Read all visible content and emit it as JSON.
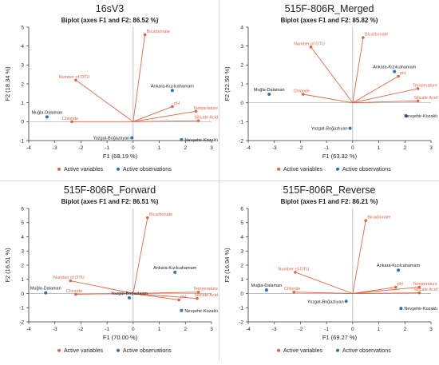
{
  "colors": {
    "variable": "#e06642",
    "observation": "#2e75b6",
    "axis": "#333333",
    "zero": "#aaaaaa"
  },
  "chart_data": [
    {
      "type": "scatter",
      "dataset": "16sV3",
      "title": "Biplot (axes F1 and F2: 86.52 %)",
      "xlabel": "F1 (68.19 %)",
      "ylabel": "F2 (18.34 %)",
      "xlim": [
        -4,
        3
      ],
      "ylim": [
        -1,
        5
      ],
      "xticks": [
        -4,
        -3,
        -2,
        -1,
        0,
        1,
        2,
        3
      ],
      "yticks": [
        -1,
        0,
        1,
        2,
        3,
        4,
        5
      ],
      "legend": [
        "Active variables",
        "Active observations"
      ],
      "variables": [
        {
          "label": "Bicarbonate",
          "x": 0.45,
          "y": 4.6
        },
        {
          "label": "Number of OTU",
          "x": -2.2,
          "y": 2.2
        },
        {
          "label": "pH",
          "x": 1.5,
          "y": 0.8
        },
        {
          "label": "Temperature",
          "x": 2.4,
          "y": 0.55
        },
        {
          "label": "Silicate Acid",
          "x": 2.5,
          "y": 0.05
        },
        {
          "label": "Chloride",
          "x": -2.35,
          "y": 0.0
        }
      ],
      "observations": [
        {
          "label": "Ankara-Kızılcahamam",
          "x": 1.5,
          "y": 1.65
        },
        {
          "label": "Muğla-Dalaman",
          "x": -3.3,
          "y": 0.25
        },
        {
          "label": "Yozgat-Boğazlıyan",
          "x": -0.05,
          "y": -0.85
        },
        {
          "label": "Nevşehir-Kozaklı",
          "x": 1.85,
          "y": -0.95
        }
      ]
    },
    {
      "type": "scatter",
      "dataset": "515F-806R_Merged",
      "title": "Biplot (axes F1 and F2: 85.82 %)",
      "xlabel": "F1 (63.32 %)",
      "ylabel": "F2 (22.50 %)",
      "xlim": [
        -4,
        3
      ],
      "ylim": [
        -2,
        4
      ],
      "xticks": [
        -4,
        -3,
        -2,
        -1,
        0,
        1,
        2,
        3
      ],
      "yticks": [
        -2,
        -1,
        0,
        1,
        2,
        3,
        4
      ],
      "legend": [
        "Active variables",
        "Active observations"
      ],
      "variables": [
        {
          "label": "Bicarbonate",
          "x": 0.4,
          "y": 3.45
        },
        {
          "label": "Number of OTU",
          "x": -1.6,
          "y": 2.95
        },
        {
          "label": "pH",
          "x": 1.75,
          "y": 1.4
        },
        {
          "label": "Temperature",
          "x": 2.5,
          "y": 0.75
        },
        {
          "label": "Silicate Acid",
          "x": 2.5,
          "y": 0.1
        },
        {
          "label": "Chloride",
          "x": -1.9,
          "y": 0.45
        }
      ],
      "observations": [
        {
          "label": "Ankara-Kızılcahamam",
          "x": 1.6,
          "y": 1.65
        },
        {
          "label": "Muğla-Dalaman",
          "x": -3.2,
          "y": 0.45
        },
        {
          "label": "Yozgat-Boğazlıyan",
          "x": -0.1,
          "y": -1.35
        },
        {
          "label": "Nevşehir-Kozaklı",
          "x": 2.05,
          "y": -0.7
        }
      ]
    },
    {
      "type": "scatter",
      "dataset": "515F-806R_Forward",
      "title": "Biplot (axes F1 and F2: 86.51 %)",
      "xlabel": "F1 (70.00 %)",
      "ylabel": "F2 (16.51 %)",
      "xlim": [
        -4,
        3
      ],
      "ylim": [
        -2,
        6
      ],
      "xticks": [
        -4,
        -3,
        -2,
        -1,
        0,
        1,
        2,
        3
      ],
      "yticks": [
        -2,
        -1,
        0,
        1,
        2,
        3,
        4,
        5,
        6
      ],
      "legend": [
        "Active variables",
        "Active observations"
      ],
      "variables": [
        {
          "label": "Bicarbonate",
          "x": 0.55,
          "y": 5.35
        },
        {
          "label": "Number of OTU",
          "x": -2.4,
          "y": 0.9
        },
        {
          "label": "Temperature",
          "x": 2.5,
          "y": 0.1
        },
        {
          "label": "Silicate Acid",
          "x": 2.45,
          "y": -0.35
        },
        {
          "label": "pH",
          "x": 1.75,
          "y": -0.45
        },
        {
          "label": "Chloride",
          "x": -2.2,
          "y": -0.05
        }
      ],
      "observations": [
        {
          "label": "Ankara-Kızılcahamam",
          "x": 1.6,
          "y": 1.5
        },
        {
          "label": "Muğla-Dalaman",
          "x": -3.35,
          "y": 0.05
        },
        {
          "label": "Yozgat-Boğazlıyan",
          "x": -0.15,
          "y": -0.3
        },
        {
          "label": "Nevşehir-Kozaklı",
          "x": 1.85,
          "y": -1.2
        }
      ]
    },
    {
      "type": "scatter",
      "dataset": "515F-806R_Reverse",
      "title": "Biplot (axes F1 and F2: 86.21 %)",
      "xlabel": "F1 (69.27 %)",
      "ylabel": "F2 (16.94 %)",
      "xlim": [
        -4,
        3
      ],
      "ylim": [
        -2,
        6
      ],
      "xticks": [
        -4,
        -3,
        -2,
        -1,
        0,
        1,
        2,
        3
      ],
      "yticks": [
        -2,
        -1,
        0,
        1,
        2,
        3,
        4,
        5,
        6
      ],
      "legend": [
        "Active variables",
        "Active observations"
      ],
      "variables": [
        {
          "label": "Bicarbonate",
          "x": 0.5,
          "y": 5.15
        },
        {
          "label": "Number of OTU",
          "x": -2.2,
          "y": 1.5
        },
        {
          "label": "pH",
          "x": 1.65,
          "y": 0.45
        },
        {
          "label": "Temperature",
          "x": 2.55,
          "y": 0.45
        },
        {
          "label": "Silicate Acid",
          "x": 2.55,
          "y": 0.05
        },
        {
          "label": "Chloride",
          "x": -2.25,
          "y": 0.1
        }
      ],
      "observations": [
        {
          "label": "Ankara-Kızılcahamam",
          "x": 1.75,
          "y": 1.65
        },
        {
          "label": "Muğla-Dalaman",
          "x": -3.3,
          "y": 0.25
        },
        {
          "label": "Yozgat-Boğazlıyan",
          "x": -0.25,
          "y": -0.55
        },
        {
          "label": "Nevşehir-Kozaklı",
          "x": 1.85,
          "y": -1.05
        }
      ]
    }
  ]
}
